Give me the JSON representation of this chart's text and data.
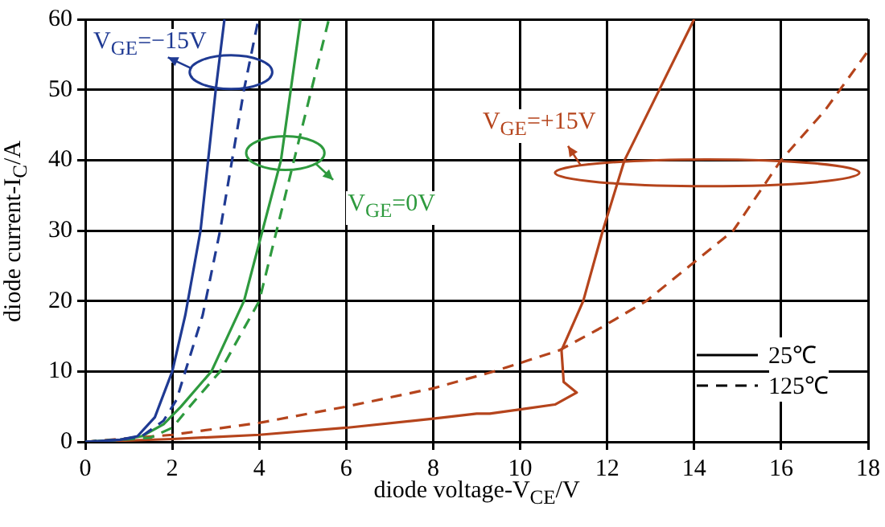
{
  "chart_data": {
    "type": "line",
    "xlabel": "diode voltage-V$_{CE}$/V",
    "ylabel": "diode current-I$_{C}$/A",
    "xlim": [
      0,
      18
    ],
    "xticks": [
      0,
      2,
      4,
      6,
      8,
      10,
      12,
      14,
      16,
      18
    ],
    "ylim": [
      0,
      60
    ],
    "yticks": [
      0,
      10,
      20,
      30,
      40,
      50,
      60
    ],
    "grid": true,
    "legend": false,
    "marker": "none",
    "series": [
      {
        "color": "#1f3a93",
        "line_style": "solid",
        "x": [
          0,
          0.8,
          1.2,
          1.6,
          2,
          2.3,
          2.65,
          3,
          3.2
        ],
        "values": [
          0,
          0.3,
          0.8,
          3.5,
          10,
          18,
          30,
          50,
          60
        ]
      },
      {
        "color": "#1f3a93",
        "line_style": "dashed",
        "x": [
          0,
          0.8,
          1.3,
          1.8,
          2.1,
          2.3,
          2.7,
          3.1,
          3.65,
          3.98
        ],
        "values": [
          0,
          0.3,
          0.8,
          3,
          6,
          10,
          18,
          30,
          50,
          60
        ]
      },
      {
        "color": "#2e9a3e",
        "line_style": "solid",
        "x": [
          0,
          0.8,
          1.3,
          1.8,
          2.2,
          2.9,
          3.65,
          4.5,
          4.95
        ],
        "values": [
          0,
          0.3,
          0.8,
          2.5,
          5,
          10,
          20,
          40,
          60
        ]
      },
      {
        "color": "#2e9a3e",
        "line_style": "dashed",
        "x": [
          0,
          0.8,
          1.5,
          2,
          2.4,
          3.1,
          4,
          4.8,
          5.6
        ],
        "values": [
          0,
          0.3,
          0.6,
          2,
          5,
          10,
          20,
          40,
          60
        ]
      },
      {
        "color": "#b5441c",
        "line_style": "solid",
        "x": [
          0,
          2,
          4,
          6,
          8,
          9,
          9.3,
          10,
          10.8,
          11.3,
          11,
          10.95,
          11.45,
          11.9,
          12.4,
          13.2,
          14
        ],
        "values": [
          0,
          0.4,
          1,
          2,
          3.3,
          4,
          4,
          4.6,
          5.3,
          7,
          8.5,
          13,
          20,
          30,
          40,
          50,
          60
        ]
      },
      {
        "color": "#b5441c",
        "line_style": "dashed",
        "x": [
          0,
          2,
          4,
          6,
          8,
          9.4,
          10.9,
          11.8,
          12.9,
          13.9,
          14.9,
          16,
          17,
          18
        ],
        "values": [
          0,
          1,
          2.7,
          5,
          7.6,
          10,
          13,
          16,
          20,
          25,
          30,
          40,
          47,
          55.5
        ]
      }
    ],
    "annotations": [
      "V$_{GE}$=−15V",
      "V$_{GE}$=0V",
      "V$_{GE}$=+15V",
      "25℃",
      "125℃"
    ]
  }
}
